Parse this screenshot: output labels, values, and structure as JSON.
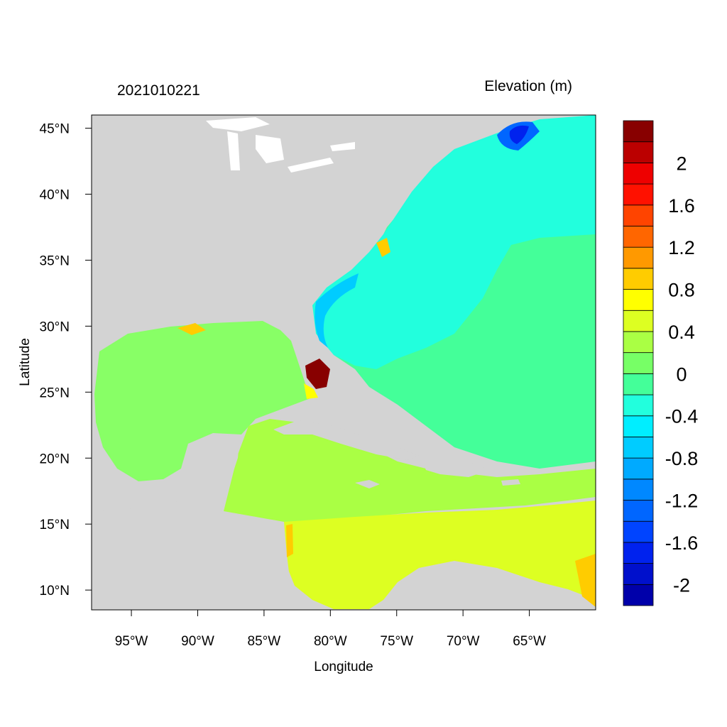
{
  "header": {
    "left_title": "2021010221",
    "right_title": "Elevation (m)"
  },
  "axes": {
    "xlabel": "Longitude",
    "ylabel": "Latitude",
    "lon_range": [
      -98,
      -60
    ],
    "lat_range": [
      8.5,
      46
    ],
    "x_ticks": [
      {
        "lon": -95,
        "label": "95°W"
      },
      {
        "lon": -90,
        "label": "90°W"
      },
      {
        "lon": -85,
        "label": "85°W"
      },
      {
        "lon": -80,
        "label": "80°W"
      },
      {
        "lon": -75,
        "label": "75°W"
      },
      {
        "lon": -70,
        "label": "70°W"
      },
      {
        "lon": -65,
        "label": "65°W"
      }
    ],
    "y_ticks": [
      {
        "lat": 45,
        "label": "45°N"
      },
      {
        "lat": 40,
        "label": "40°N"
      },
      {
        "lat": 35,
        "label": "35°N"
      },
      {
        "lat": 30,
        "label": "30°N"
      },
      {
        "lat": 25,
        "label": "25°N"
      },
      {
        "lat": 20,
        "label": "20°N"
      },
      {
        "lat": 15,
        "label": "15°N"
      },
      {
        "lat": 10,
        "label": "10°N"
      }
    ]
  },
  "colorbar": {
    "colors": [
      "#0000aa",
      "#0010cc",
      "#0022ee",
      "#0044ff",
      "#0066ff",
      "#0088ff",
      "#00aaff",
      "#00ccff",
      "#00eeff",
      "#22ffdd",
      "#44ff99",
      "#77ff66",
      "#aaff44",
      "#ddff22",
      "#ffff00",
      "#ffcc00",
      "#ff9900",
      "#ff6600",
      "#ff4400",
      "#ff1100",
      "#ee0000",
      "#bb0000",
      "#880000"
    ],
    "labels": [
      {
        "index": 1,
        "text": "-2"
      },
      {
        "index": 3,
        "text": "-1.6"
      },
      {
        "index": 5,
        "text": "-1.2"
      },
      {
        "index": 7,
        "text": "-0.8"
      },
      {
        "index": 9,
        "text": "-0.4"
      },
      {
        "index": 11,
        "text": "0"
      },
      {
        "index": 13,
        "text": "0.4"
      },
      {
        "index": 15,
        "text": "0.8"
      },
      {
        "index": 17,
        "text": "1.2"
      },
      {
        "index": 19,
        "text": "1.6"
      },
      {
        "index": 21,
        "text": "2"
      }
    ]
  },
  "map_colors": {
    "land": "#d3d3d3",
    "lake": "#ffffff",
    "gulf": "#88ff66",
    "atlantic": "#44ff99",
    "shelf": "#22ffdd",
    "caribbean": "#aaff44",
    "south_caribbean": "#ddff22",
    "flood": "#880000"
  }
}
